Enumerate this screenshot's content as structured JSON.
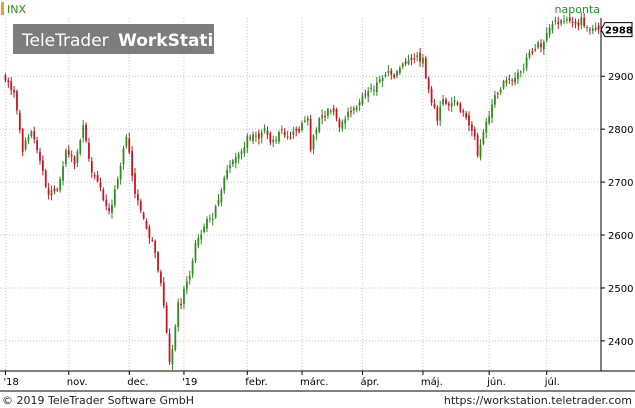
{
  "header": {
    "symbol": "INX",
    "interval": "naponta",
    "brand_light": "TeleTrader",
    "brand_bold": "WorkStation"
  },
  "footer": {
    "copyright": "© 2019 TeleTrader Software GmbH",
    "url": "https://workstation.teletrader.com"
  },
  "colors": {
    "up": "#2e8b1f",
    "down": "#c8141e",
    "grid": "#c8c8c8",
    "axis": "#000000",
    "symbol_marker": "#f2a11c",
    "interval_text": "#1a9a1a",
    "brand_bg": "#7d7d7d"
  },
  "chart_data": {
    "type": "candlestick",
    "title": "",
    "series_name": "INX",
    "x_ticks": [
      {
        "label": "'18",
        "index": 0
      },
      {
        "label": "nov.",
        "index": 22
      },
      {
        "label": "dec.",
        "index": 43
      },
      {
        "label": "'19",
        "index": 62
      },
      {
        "label": "febr.",
        "index": 84
      },
      {
        "label": "márc.",
        "index": 103
      },
      {
        "label": "ápr.",
        "index": 124
      },
      {
        "label": "máj.",
        "index": 145
      },
      {
        "label": "jún.",
        "index": 168
      },
      {
        "label": "júl.",
        "index": 188
      }
    ],
    "y_ticks": [
      2400,
      2500,
      2600,
      2700,
      2800,
      2900
    ],
    "ylim": [
      2345,
      3010
    ],
    "n_days": 207,
    "last_value": "2988",
    "last_close": 2988,
    "anchors": [
      [
        0,
        2895
      ],
      [
        3,
        2870
      ],
      [
        6,
        2760
      ],
      [
        9,
        2800
      ],
      [
        12,
        2735
      ],
      [
        15,
        2680
      ],
      [
        18,
        2690
      ],
      [
        21,
        2755
      ],
      [
        24,
        2740
      ],
      [
        27,
        2805
      ],
      [
        30,
        2720
      ],
      [
        33,
        2690
      ],
      [
        36,
        2640
      ],
      [
        39,
        2700
      ],
      [
        42,
        2790
      ],
      [
        45,
        2680
      ],
      [
        48,
        2630
      ],
      [
        51,
        2585
      ],
      [
        54,
        2510
      ],
      [
        56,
        2420
      ],
      [
        57,
        2355
      ],
      [
        58,
        2385
      ],
      [
        60,
        2480
      ],
      [
        61,
        2470
      ],
      [
        62,
        2505
      ],
      [
        64,
        2530
      ],
      [
        66,
        2585
      ],
      [
        68,
        2600
      ],
      [
        70,
        2635
      ],
      [
        72,
        2635
      ],
      [
        74,
        2660
      ],
      [
        76,
        2705
      ],
      [
        78,
        2730
      ],
      [
        80,
        2745
      ],
      [
        82,
        2760
      ],
      [
        84,
        2785
      ],
      [
        86,
        2790
      ],
      [
        88,
        2780
      ],
      [
        90,
        2800
      ],
      [
        92,
        2780
      ],
      [
        94,
        2775
      ],
      [
        96,
        2800
      ],
      [
        98,
        2785
      ],
      [
        100,
        2790
      ],
      [
        103,
        2805
      ],
      [
        105,
        2820
      ],
      [
        106,
        2760
      ],
      [
        107,
        2790
      ],
      [
        110,
        2825
      ],
      [
        113,
        2840
      ],
      [
        116,
        2810
      ],
      [
        118,
        2825
      ],
      [
        121,
        2835
      ],
      [
        124,
        2865
      ],
      [
        127,
        2875
      ],
      [
        130,
        2890
      ],
      [
        133,
        2905
      ],
      [
        136,
        2905
      ],
      [
        139,
        2925
      ],
      [
        141,
        2935
      ],
      [
        143,
        2935
      ],
      [
        145,
        2930
      ],
      [
        146,
        2890
      ],
      [
        148,
        2850
      ],
      [
        150,
        2820
      ],
      [
        152,
        2855
      ],
      [
        154,
        2840
      ],
      [
        156,
        2850
      ],
      [
        158,
        2840
      ],
      [
        160,
        2820
      ],
      [
        162,
        2795
      ],
      [
        163,
        2780
      ],
      [
        164,
        2750
      ],
      [
        165,
        2770
      ],
      [
        166,
        2790
      ],
      [
        168,
        2825
      ],
      [
        170,
        2865
      ],
      [
        172,
        2880
      ],
      [
        174,
        2890
      ],
      [
        176,
        2895
      ],
      [
        178,
        2905
      ],
      [
        180,
        2920
      ],
      [
        182,
        2945
      ],
      [
        184,
        2955
      ],
      [
        186,
        2960
      ],
      [
        188,
        2975
      ],
      [
        190,
        2995
      ],
      [
        192,
        3005
      ],
      [
        194,
        3010
      ],
      [
        196,
        3000
      ],
      [
        198,
        2995
      ],
      [
        200,
        3005
      ],
      [
        202,
        2995
      ],
      [
        204,
        2990
      ],
      [
        206,
        2988
      ]
    ]
  }
}
